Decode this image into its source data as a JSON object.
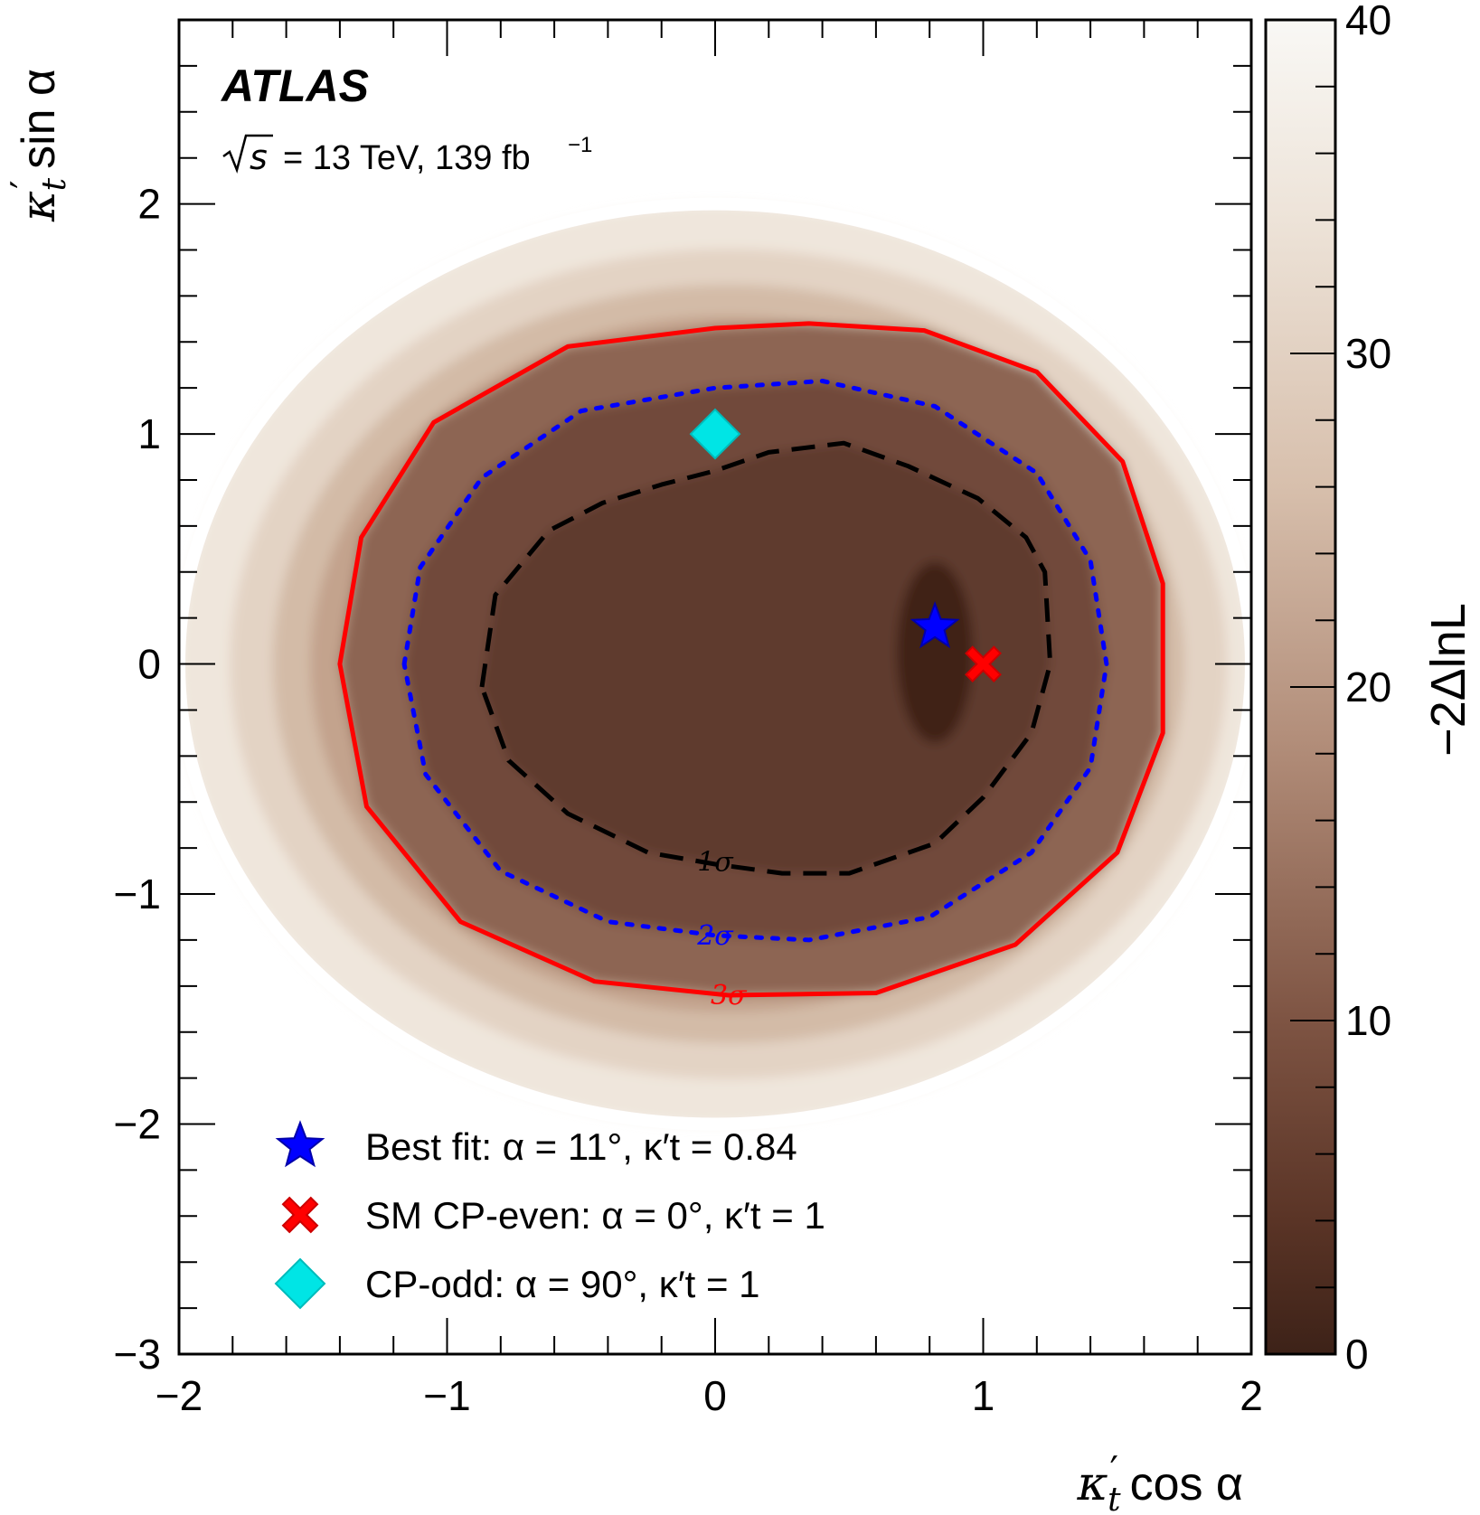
{
  "chart_data": {
    "type": "heatmap",
    "brand": "ATLAS",
    "energy_label": "= 13 TeV, 139 fb",
    "energy_prefix": "s",
    "lumi_exponent": "−1",
    "xlabel": {
      "main": "κ",
      "sub": "t",
      "tail": "cos α"
    },
    "ylabel": {
      "main": "κ",
      "sub": "t",
      "tail": "sin α"
    },
    "zlabel": "−2ΔlnL",
    "xlim": [
      -2,
      2
    ],
    "ylim": [
      -3,
      2.8
    ],
    "zlim": [
      0,
      40
    ],
    "x_ticks": [
      {
        "v": -2,
        "label": "−2"
      },
      {
        "v": -1,
        "label": "−1"
      },
      {
        "v": 0,
        "label": "0"
      },
      {
        "v": 1,
        "label": "1"
      },
      {
        "v": 2,
        "label": "2"
      }
    ],
    "y_ticks": [
      {
        "v": -3,
        "label": "−3"
      },
      {
        "v": -2,
        "label": "−2"
      },
      {
        "v": -1,
        "label": "−1"
      },
      {
        "v": 0,
        "label": "0"
      },
      {
        "v": 1,
        "label": "1"
      },
      {
        "v": 2,
        "label": "2"
      }
    ],
    "z_ticks": [
      {
        "v": 0,
        "label": "0"
      },
      {
        "v": 10,
        "label": "10"
      },
      {
        "v": 20,
        "label": "20"
      },
      {
        "v": 30,
        "label": "30"
      },
      {
        "v": 40,
        "label": "40"
      }
    ],
    "colormap": {
      "low": "#3d2218",
      "mid": "#b8907c",
      "high": "#f8f6f2"
    },
    "data_region": "disk of radius 2 in polar (κ'_t, α) space",
    "contours": [
      {
        "name": "1σ",
        "label": "1σ",
        "color": "#000000",
        "style": "dashed",
        "label_at": [
          0,
          -0.86
        ],
        "points": [
          [
            -0.87,
            -0.1
          ],
          [
            -0.82,
            0.3
          ],
          [
            -0.62,
            0.58
          ],
          [
            -0.42,
            0.7
          ],
          [
            -0.2,
            0.78
          ],
          [
            0.0,
            0.84
          ],
          [
            0.2,
            0.92
          ],
          [
            0.48,
            0.96
          ],
          [
            0.72,
            0.86
          ],
          [
            0.98,
            0.72
          ],
          [
            1.16,
            0.55
          ],
          [
            1.23,
            0.4
          ],
          [
            1.25,
            0.0
          ],
          [
            1.18,
            -0.3
          ],
          [
            1.0,
            -0.58
          ],
          [
            0.82,
            -0.78
          ],
          [
            0.5,
            -0.91
          ],
          [
            0.25,
            -0.91
          ],
          [
            0.0,
            -0.87
          ],
          [
            -0.25,
            -0.82
          ],
          [
            -0.55,
            -0.65
          ],
          [
            -0.77,
            -0.42
          ],
          [
            -0.87,
            -0.1
          ]
        ]
      },
      {
        "name": "2σ",
        "label": "2σ",
        "color": "#0000ff",
        "style": "dotted",
        "label_at": [
          0,
          -1.18
        ],
        "points": [
          [
            -1.16,
            0.0
          ],
          [
            -1.1,
            0.42
          ],
          [
            -0.87,
            0.81
          ],
          [
            -0.5,
            1.1
          ],
          [
            0.0,
            1.2
          ],
          [
            0.4,
            1.23
          ],
          [
            0.82,
            1.12
          ],
          [
            1.2,
            0.83
          ],
          [
            1.4,
            0.45
          ],
          [
            1.46,
            0.0
          ],
          [
            1.4,
            -0.45
          ],
          [
            1.18,
            -0.82
          ],
          [
            0.8,
            -1.1
          ],
          [
            0.35,
            -1.2
          ],
          [
            0.0,
            -1.18
          ],
          [
            -0.4,
            -1.12
          ],
          [
            -0.8,
            -0.9
          ],
          [
            -1.08,
            -0.48
          ],
          [
            -1.16,
            0.0
          ]
        ]
      },
      {
        "name": "3σ",
        "label": "3σ",
        "color": "#ff0000",
        "style": "solid",
        "label_at": [
          0.05,
          -1.44
        ],
        "points": [
          [
            -1.4,
            0.0
          ],
          [
            -1.32,
            0.55
          ],
          [
            -1.05,
            1.05
          ],
          [
            -0.55,
            1.38
          ],
          [
            0.0,
            1.46
          ],
          [
            0.35,
            1.48
          ],
          [
            0.78,
            1.45
          ],
          [
            1.2,
            1.27
          ],
          [
            1.52,
            0.88
          ],
          [
            1.67,
            0.35
          ],
          [
            1.67,
            -0.3
          ],
          [
            1.5,
            -0.82
          ],
          [
            1.12,
            -1.22
          ],
          [
            0.6,
            -1.43
          ],
          [
            0.05,
            -1.44
          ],
          [
            -0.45,
            -1.38
          ],
          [
            -0.95,
            -1.12
          ],
          [
            -1.3,
            -0.62
          ],
          [
            -1.4,
            0.0
          ]
        ]
      }
    ],
    "markers": [
      {
        "name": "Best fit",
        "shape": "star",
        "color": "#0000ff",
        "x": 0.82,
        "y": 0.16
      },
      {
        "name": "SM CP-even",
        "shape": "cross",
        "color": "#ff0000",
        "x": 1.0,
        "y": 0.0
      },
      {
        "name": "CP-odd",
        "shape": "diamond",
        "color": "#00e5e5",
        "x": 0.0,
        "y": 1.0
      }
    ],
    "legend": [
      {
        "shape": "star",
        "color": "#0000ff",
        "text": "Best fit: α = 11°, κ′t = 0.84"
      },
      {
        "shape": "cross",
        "color": "#ff0000",
        "text": "SM CP-even: α = 0°, κ′t = 1"
      },
      {
        "shape": "diamond",
        "color": "#00e5e5",
        "text": "CP-odd: α = 90°, κ′t = 1"
      }
    ],
    "legend_position": "bottom-left",
    "grid": false
  }
}
